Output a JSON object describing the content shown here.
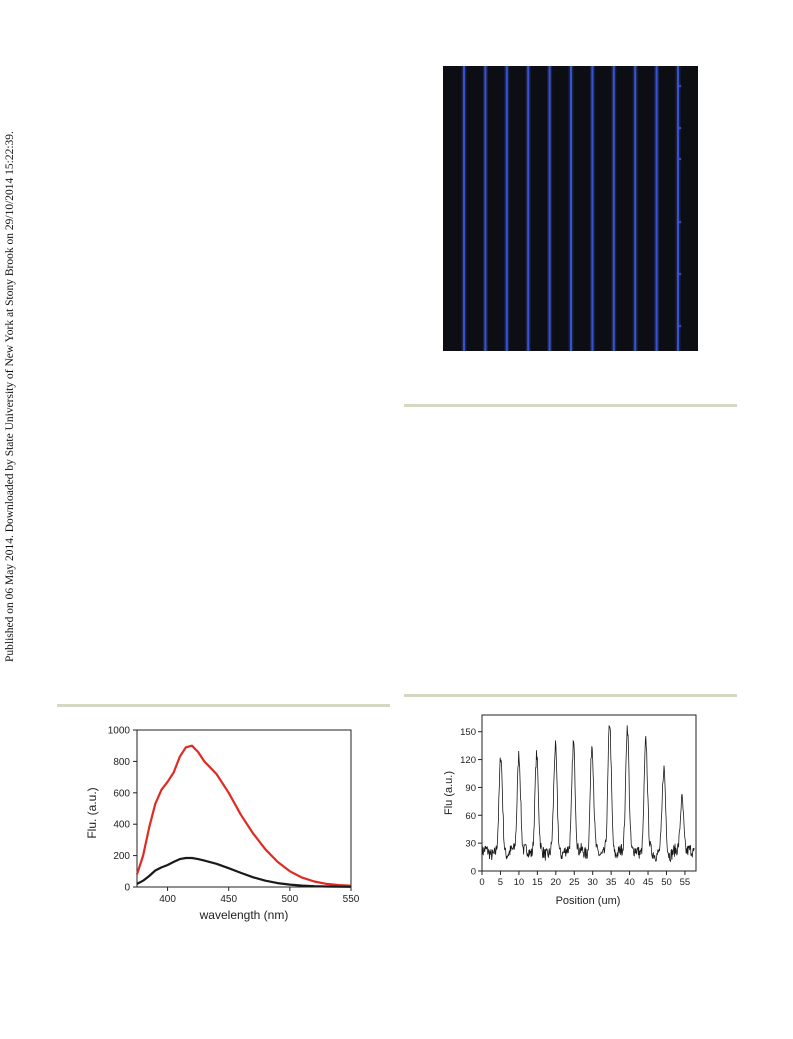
{
  "sidebar_text": "Published on 06 May 2014. Downloaded by State University of New York at Stony Brook on 29/10/2014 15:22:39.",
  "colors": {
    "rule": "#d6d7c2",
    "micro_bg": "#0c0e14",
    "micro_line": "#3b56d8",
    "red_series": "#e02a22",
    "black_series": "#1a1a1a"
  },
  "figure": {
    "type": "fluorescence-micrograph",
    "line_count": 11
  },
  "chart_data": [
    {
      "type": "line",
      "title": "",
      "xlabel": "wavelength (nm)",
      "ylabel": "Flu. (a.u.)",
      "xlim": [
        375,
        550
      ],
      "ylim": [
        0,
        1000
      ],
      "xticks": [
        400,
        450,
        500,
        550
      ],
      "yticks": [
        0,
        200,
        400,
        600,
        800,
        1000
      ],
      "legend": "none",
      "series": [
        {
          "color": "#e02a22",
          "x": [
            375,
            380,
            385,
            390,
            395,
            400,
            405,
            410,
            415,
            420,
            425,
            430,
            435,
            440,
            450,
            460,
            470,
            480,
            490,
            500,
            510,
            520,
            530,
            540,
            550
          ],
          "y": [
            80,
            200,
            380,
            530,
            620,
            670,
            730,
            830,
            890,
            900,
            860,
            800,
            760,
            720,
            600,
            460,
            340,
            240,
            160,
            100,
            60,
            35,
            20,
            12,
            8
          ]
        },
        {
          "color": "#1a1a1a",
          "x": [
            375,
            380,
            385,
            390,
            395,
            400,
            405,
            410,
            415,
            420,
            425,
            430,
            440,
            450,
            460,
            470,
            480,
            490,
            500,
            510,
            520,
            530,
            540,
            550
          ],
          "y": [
            20,
            40,
            70,
            105,
            125,
            140,
            160,
            178,
            185,
            185,
            178,
            168,
            148,
            120,
            90,
            62,
            40,
            25,
            15,
            9,
            5,
            3,
            2,
            1
          ]
        }
      ]
    },
    {
      "type": "line",
      "title": "",
      "xlabel": "Position (um)",
      "ylabel": "Flu (a.u.)",
      "xlim": [
        0,
        58
      ],
      "ylim": [
        0,
        168
      ],
      "xticks": [
        0,
        5,
        10,
        15,
        20,
        25,
        30,
        35,
        40,
        45,
        50,
        55
      ],
      "yticks": [
        0,
        30,
        60,
        90,
        120,
        150
      ],
      "legend": "none",
      "peaks": [
        {
          "x": 5.1,
          "y": 122
        },
        {
          "x": 10.0,
          "y": 128
        },
        {
          "x": 14.8,
          "y": 125
        },
        {
          "x": 19.9,
          "y": 132
        },
        {
          "x": 24.8,
          "y": 141
        },
        {
          "x": 29.8,
          "y": 135
        },
        {
          "x": 34.6,
          "y": 158
        },
        {
          "x": 39.4,
          "y": 158
        },
        {
          "x": 44.4,
          "y": 140
        },
        {
          "x": 49.3,
          "y": 108
        },
        {
          "x": 54.2,
          "y": 80
        }
      ],
      "baseline": 20,
      "series": [
        {
          "color": "#1a1a1a"
        }
      ]
    }
  ]
}
